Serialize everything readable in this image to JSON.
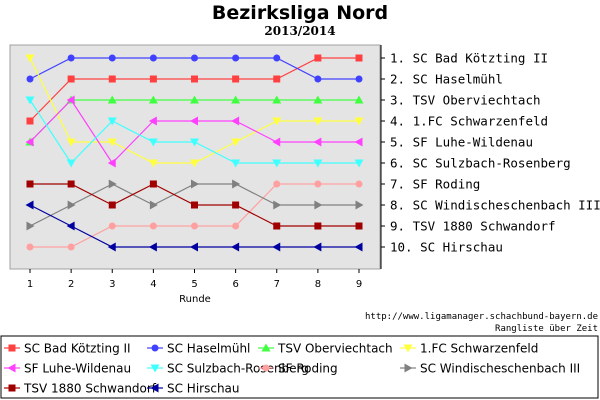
{
  "chart_data": {
    "type": "line",
    "title": "Bezirksliga Nord",
    "subtitle": "2013/2014",
    "xlabel": "Runde",
    "x": [
      1,
      2,
      3,
      4,
      5,
      6,
      7,
      8,
      9
    ],
    "ylim": [
      1,
      10
    ],
    "y_inverted": true,
    "grid": false,
    "legend_position": "bottom",
    "standings": [
      "1. SC Bad Kötzting II",
      "2. SC Haselmühl",
      "3. TSV Oberviechtach",
      "4. 1.FC Schwarzenfeld",
      "5. SF Luhe-Wildenau",
      "6. SC Sulzbach-Rosenberg",
      "7. SF Roding",
      "8. SC Windischeschenbach III",
      "9. TSV 1880 Schwandorf",
      "10. SC Hirschau"
    ],
    "series": [
      {
        "name": "SC Bad Kötzting II",
        "color": "#ff4040",
        "marker": "square",
        "values": [
          4,
          2,
          2,
          2,
          2,
          2,
          2,
          1,
          1
        ]
      },
      {
        "name": "SC Haselmühl",
        "color": "#4040ff",
        "marker": "circle",
        "values": [
          2,
          1,
          1,
          1,
          1,
          1,
          1,
          2,
          2
        ]
      },
      {
        "name": "TSV Oberviechtach",
        "color": "#40ff40",
        "marker": "triangle-up",
        "values": [
          5,
          3,
          3,
          3,
          3,
          3,
          3,
          3,
          3
        ]
      },
      {
        "name": "1.FC Schwarzenfeld",
        "color": "#ffff40",
        "marker": "triangle-down",
        "values": [
          1,
          5,
          5,
          6,
          6,
          5,
          4,
          4,
          4
        ]
      },
      {
        "name": "SF Luhe-Wildenau",
        "color": "#ff40ff",
        "marker": "triangle-left",
        "values": [
          5,
          3,
          6,
          4,
          4,
          4,
          5,
          5,
          5
        ]
      },
      {
        "name": "SC Sulzbach-Rosenberg",
        "color": "#40ffff",
        "marker": "triangle-down",
        "values": [
          3,
          6,
          4,
          5,
          5,
          6,
          6,
          6,
          6
        ]
      },
      {
        "name": "SF Roding",
        "color": "#ffa0a0",
        "marker": "circle",
        "values": [
          10,
          10,
          9,
          9,
          9,
          9,
          7,
          7,
          7
        ]
      },
      {
        "name": "SC Windischeschenbach III",
        "color": "#808080",
        "marker": "triangle-right",
        "values": [
          9,
          8,
          7,
          8,
          7,
          7,
          8,
          8,
          8
        ]
      },
      {
        "name": "TSV 1880 Schwandorf",
        "color": "#a00000",
        "marker": "square",
        "values": [
          7,
          7,
          8,
          7,
          8,
          8,
          9,
          9,
          9
        ]
      },
      {
        "name": "SC Hirschau",
        "color": "#0000a0",
        "marker": "triangle-left",
        "values": [
          8,
          9,
          10,
          10,
          10,
          10,
          10,
          10,
          10
        ]
      }
    ]
  },
  "footer": {
    "url": "http://www.ligamanager.schachbund-bayern.de",
    "caption": "Rangliste über Zeit"
  }
}
